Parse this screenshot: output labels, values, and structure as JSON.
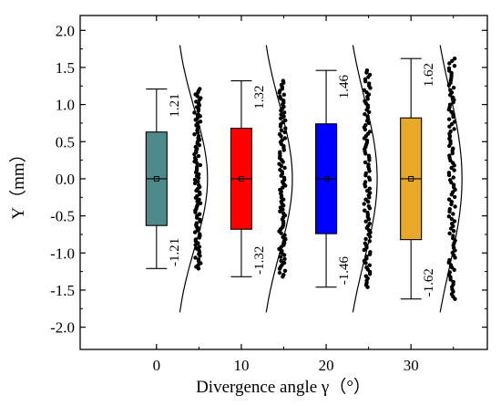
{
  "chart_data": {
    "type": "box",
    "xlabel": "Divergence angle γ（°）",
    "ylabel": "Y（mm）",
    "x_ticks": [
      0,
      10,
      20,
      30
    ],
    "y_ticks": [
      "2.0",
      "1.5",
      "1.0",
      "0.5",
      "0.0",
      "-0.5",
      "-1.0",
      "-1.5",
      "-2.0"
    ],
    "xlim": [
      -9,
      39
    ],
    "ylim": [
      -2.3,
      2.2
    ],
    "grid": false,
    "legend": "none",
    "boxes": [
      {
        "x": 0,
        "whisker_low": -1.21,
        "q1": -0.63,
        "median": 0.0,
        "mean": 0.0,
        "q3": 0.63,
        "whisker_high": 1.21,
        "label_high": "1.21",
        "label_low": "-1.21",
        "color": "#4f8a8b"
      },
      {
        "x": 10,
        "whisker_low": -1.32,
        "q1": -0.68,
        "median": 0.0,
        "mean": 0.0,
        "q3": 0.68,
        "whisker_high": 1.32,
        "label_high": "1.32",
        "label_low": "-1.32",
        "color": "#ff0000"
      },
      {
        "x": 20,
        "whisker_low": -1.46,
        "q1": -0.74,
        "median": 0.0,
        "mean": 0.0,
        "q3": 0.74,
        "whisker_high": 1.46,
        "label_high": "1.46",
        "label_low": "-1.46",
        "color": "#0000ff"
      },
      {
        "x": 30,
        "whisker_low": -1.62,
        "q1": -0.82,
        "median": 0.0,
        "mean": 0.0,
        "q3": 0.82,
        "whisker_high": 1.62,
        "label_high": "1.62",
        "label_low": "-1.62",
        "color": "#e8a928"
      }
    ]
  }
}
